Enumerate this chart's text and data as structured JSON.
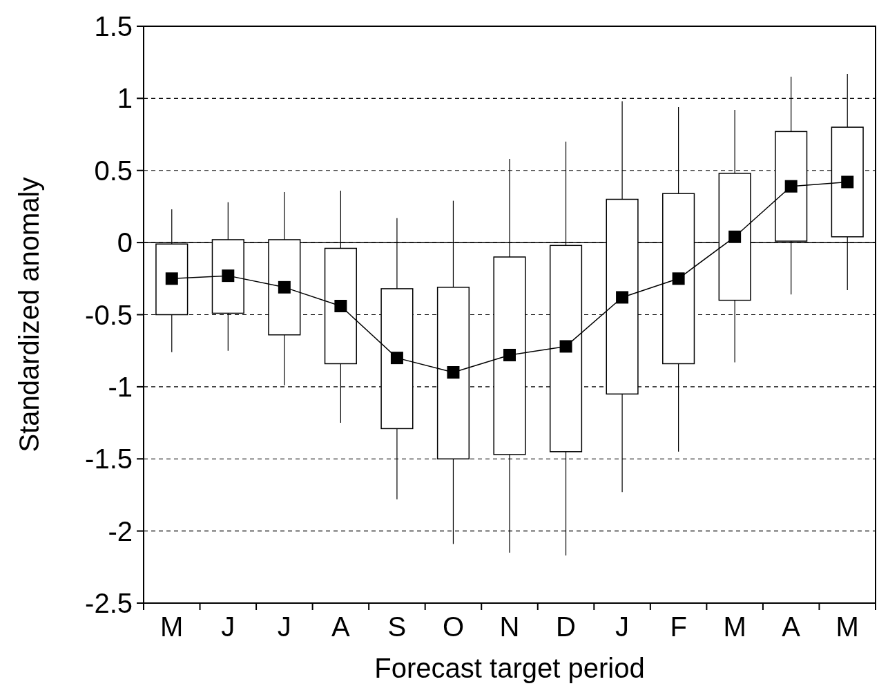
{
  "chart_data": {
    "type": "box",
    "xlabel": "Forecast target period",
    "ylabel": "Standardized anomaly",
    "categories": [
      "M",
      "J",
      "J",
      "A",
      "S",
      "O",
      "N",
      "D",
      "J",
      "F",
      "M",
      "A",
      "M"
    ],
    "ylim": [
      -2.5,
      1.5
    ],
    "yticks": [
      -2.5,
      -2,
      -1.5,
      -1,
      -0.5,
      0,
      0.5,
      1,
      1.5
    ],
    "grid": "y",
    "ref_lines": [
      {
        "axis": "y",
        "value": 0,
        "line_style": "solid",
        "color": "#000000"
      }
    ],
    "series": [
      {
        "color": "#000000",
        "boxes": [
          {
            "low": -0.76,
            "q1": -0.5,
            "median": -0.25,
            "q3": -0.01,
            "high": 0.23
          },
          {
            "low": -0.75,
            "q1": -0.49,
            "median": -0.23,
            "q3": 0.02,
            "high": 0.28
          },
          {
            "low": -0.99,
            "q1": -0.64,
            "median": -0.31,
            "q3": 0.02,
            "high": 0.35
          },
          {
            "low": -1.25,
            "q1": -0.84,
            "median": -0.44,
            "q3": -0.04,
            "high": 0.36
          },
          {
            "low": -1.78,
            "q1": -1.29,
            "median": -0.8,
            "q3": -0.32,
            "high": 0.17
          },
          {
            "low": -2.09,
            "q1": -1.5,
            "median": -0.9,
            "q3": -0.31,
            "high": 0.29
          },
          {
            "low": -2.15,
            "q1": -1.47,
            "median": -0.78,
            "q3": -0.1,
            "high": 0.58
          },
          {
            "low": -2.17,
            "q1": -1.45,
            "median": -0.72,
            "q3": -0.02,
            "high": 0.7
          },
          {
            "low": -1.73,
            "q1": -1.05,
            "median": -0.38,
            "q3": 0.3,
            "high": 0.98
          },
          {
            "low": -1.45,
            "q1": -0.84,
            "median": -0.25,
            "q3": 0.34,
            "high": 0.94
          },
          {
            "low": -0.83,
            "q1": -0.4,
            "median": 0.04,
            "q3": 0.48,
            "high": 0.92
          },
          {
            "low": -0.36,
            "q1": 0.01,
            "median": 0.39,
            "q3": 0.77,
            "high": 1.15
          },
          {
            "low": -0.33,
            "q1": 0.04,
            "median": 0.42,
            "q3": 0.8,
            "high": 1.17
          }
        ]
      },
      {
        "type": "line",
        "color": "#000000",
        "marker": "none",
        "values": [
          -0.25,
          -0.23,
          -0.31,
          -0.44,
          -0.8,
          -0.9,
          -0.78,
          -0.72,
          -0.38,
          -0.25,
          0.04,
          0.39,
          0.42
        ]
      }
    ]
  }
}
